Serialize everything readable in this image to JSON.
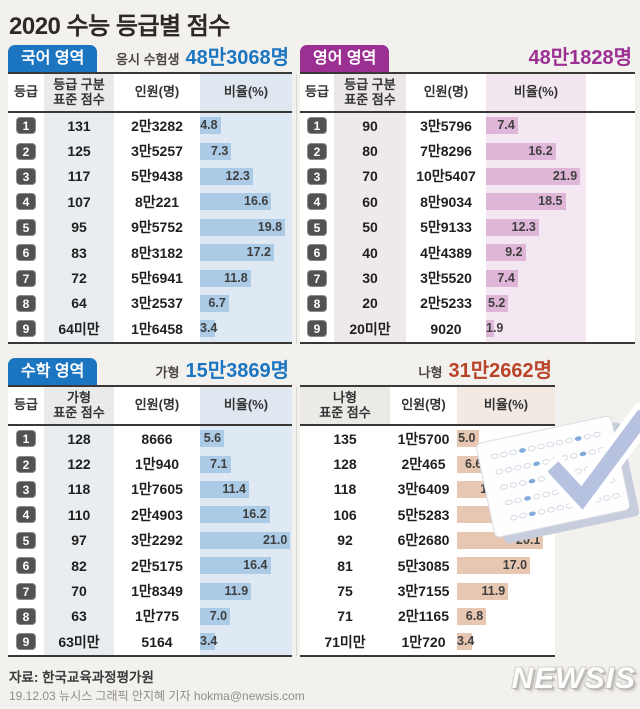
{
  "title": "2020 수능 등급별 점수",
  "sections": {
    "korean": {
      "badge": "국어 영역",
      "count_label": "응시 수험생",
      "count": "48만3068명",
      "accent": "#1c75c1",
      "bar_color": "#abcbe7",
      "headers": {
        "grade": "등급",
        "score1": "등급 구분",
        "score2": "표준 점수",
        "count": "인원(명)",
        "ratio": "비율(%)"
      },
      "rows": [
        {
          "g": "1",
          "s": "131",
          "c": "2만3282",
          "r": "4.8"
        },
        {
          "g": "2",
          "s": "125",
          "c": "3만5257",
          "r": "7.3"
        },
        {
          "g": "3",
          "s": "117",
          "c": "5만9438",
          "r": "12.3"
        },
        {
          "g": "4",
          "s": "107",
          "c": "8만221",
          "r": "16.6"
        },
        {
          "g": "5",
          "s": "95",
          "c": "9만5752",
          "r": "19.8"
        },
        {
          "g": "6",
          "s": "83",
          "c": "8만3182",
          "r": "17.2"
        },
        {
          "g": "7",
          "s": "72",
          "c": "5만6941",
          "r": "11.8"
        },
        {
          "g": "8",
          "s": "64",
          "c": "3만2537",
          "r": "6.7"
        },
        {
          "g": "9",
          "s": "64미만",
          "c": "1만6458",
          "r": "3.4"
        }
      ]
    },
    "english": {
      "badge": "영어 영역",
      "count": "48만1828명",
      "accent": "#9c3092",
      "bar_color": "#dfb5d8",
      "headers": {
        "grade": "등급",
        "score1": "등급 구분",
        "score2": "표준 점수",
        "count": "인원(명)",
        "ratio": "비율(%)"
      },
      "rows": [
        {
          "g": "1",
          "s": "90",
          "c": "3만5796",
          "r": "7.4"
        },
        {
          "g": "2",
          "s": "80",
          "c": "7만8296",
          "r": "16.2"
        },
        {
          "g": "3",
          "s": "70",
          "c": "10만5407",
          "r": "21.9"
        },
        {
          "g": "4",
          "s": "60",
          "c": "8만9034",
          "r": "18.5"
        },
        {
          "g": "5",
          "s": "50",
          "c": "5만9133",
          "r": "12.3"
        },
        {
          "g": "6",
          "s": "40",
          "c": "4만4389",
          "r": "9.2"
        },
        {
          "g": "7",
          "s": "30",
          "c": "3만5520",
          "r": "7.4"
        },
        {
          "g": "8",
          "s": "20",
          "c": "2만5233",
          "r": "5.2"
        },
        {
          "g": "9",
          "s": "20미만",
          "c": "9020",
          "r": "1.9"
        }
      ]
    },
    "ga": {
      "badge": "수학 영역",
      "count_label": "가형",
      "count": "15만3869명",
      "accent": "#1c75c1",
      "bar_color": "#abcbe7",
      "headers": {
        "grade": "등급",
        "score1": "가형",
        "score2": "표준 점수",
        "count": "인원(명)",
        "ratio": "비율(%)"
      },
      "rows": [
        {
          "g": "1",
          "s": "128",
          "c": "8666",
          "r": "5.6"
        },
        {
          "g": "2",
          "s": "122",
          "c": "1만940",
          "r": "7.1"
        },
        {
          "g": "3",
          "s": "118",
          "c": "1만7605",
          "r": "11.4"
        },
        {
          "g": "4",
          "s": "110",
          "c": "2만4903",
          "r": "16.2"
        },
        {
          "g": "5",
          "s": "97",
          "c": "3만2292",
          "r": "21.0"
        },
        {
          "g": "6",
          "s": "82",
          "c": "2만5175",
          "r": "16.4"
        },
        {
          "g": "7",
          "s": "70",
          "c": "1만8349",
          "r": "11.9"
        },
        {
          "g": "8",
          "s": "63",
          "c": "1만775",
          "r": "7.0"
        },
        {
          "g": "9",
          "s": "63미만",
          "c": "5164",
          "r": "3.4"
        }
      ]
    },
    "na": {
      "count_label": "나형",
      "count": "31만2662명",
      "accent": "#b9442a",
      "bar_color": "#e7c6b2",
      "headers": {
        "score1": "나형",
        "score2": "표준 점수",
        "count": "인원(명)",
        "ratio": "비율(%)"
      },
      "rows": [
        {
          "s": "135",
          "c": "1만5700",
          "r": "5.0"
        },
        {
          "s": "128",
          "c": "2만465",
          "r": "6.6"
        },
        {
          "s": "118",
          "c": "3만6409",
          "r": "11.6"
        },
        {
          "s": "106",
          "c": "5만5283",
          "r": "17.7"
        },
        {
          "s": "92",
          "c": "6만2680",
          "r": "20.1"
        },
        {
          "s": "81",
          "c": "5만3085",
          "r": "17.0"
        },
        {
          "s": "75",
          "c": "3만7155",
          "r": "11.9"
        },
        {
          "s": "71",
          "c": "2만1165",
          "r": "6.8"
        },
        {
          "s": "71미만",
          "c": "1만720",
          "r": "3.4"
        }
      ]
    }
  },
  "illustration": {
    "name": "omr-answer-sheet-with-checkmark",
    "check_color": "#b7c2e1",
    "bubble_color": "#82aada"
  },
  "footer": {
    "source": "자료: 한국교육과정평가원",
    "credit": "19.12.03 뉴시스 그래픽 안지혜 기자 hokma@newsis.com",
    "logo": "NEWSIS"
  },
  "chart_data": [
    {
      "type": "bar",
      "orientation": "horizontal",
      "title": "국어 영역",
      "subtitle": "응시 수험생 48만3068명",
      "categories": [
        "1",
        "2",
        "3",
        "4",
        "5",
        "6",
        "7",
        "8",
        "9"
      ],
      "score_cutoffs": [
        "131",
        "125",
        "117",
        "107",
        "95",
        "83",
        "72",
        "64",
        "64미만"
      ],
      "counts": [
        "2만3282",
        "3만5257",
        "5만9438",
        "8만221",
        "9만5752",
        "8만3182",
        "5만6941",
        "3만2537",
        "1만6458"
      ],
      "values": [
        4.8,
        7.3,
        12.3,
        16.6,
        19.8,
        17.2,
        11.8,
        6.7,
        3.4
      ],
      "xlabel": "비율(%)",
      "ylabel": "등급",
      "xlim": [
        0,
        22
      ],
      "legend": false
    },
    {
      "type": "bar",
      "orientation": "horizontal",
      "title": "영어 영역",
      "subtitle": "48만1828명",
      "categories": [
        "1",
        "2",
        "3",
        "4",
        "5",
        "6",
        "7",
        "8",
        "9"
      ],
      "score_cutoffs": [
        "90",
        "80",
        "70",
        "60",
        "50",
        "40",
        "30",
        "20",
        "20미만"
      ],
      "counts": [
        "3만5796",
        "7만8296",
        "10만5407",
        "8만9034",
        "5만9133",
        "4만4389",
        "3만5520",
        "2만5233",
        "9020"
      ],
      "values": [
        7.4,
        16.2,
        21.9,
        18.5,
        12.3,
        9.2,
        7.4,
        5.2,
        1.9
      ],
      "xlabel": "비율(%)",
      "ylabel": "등급",
      "xlim": [
        0,
        22
      ],
      "legend": false
    },
    {
      "type": "bar",
      "orientation": "horizontal",
      "title": "수학 영역 가형",
      "subtitle": "가형 15만3869명",
      "categories": [
        "1",
        "2",
        "3",
        "4",
        "5",
        "6",
        "7",
        "8",
        "9"
      ],
      "score_cutoffs": [
        "128",
        "122",
        "118",
        "110",
        "97",
        "82",
        "70",
        "63",
        "63미만"
      ],
      "counts": [
        "8666",
        "1만940",
        "1만7605",
        "2만4903",
        "3만2292",
        "2만5175",
        "1만8349",
        "1만775",
        "5164"
      ],
      "values": [
        5.6,
        7.1,
        11.4,
        16.2,
        21.0,
        16.4,
        11.9,
        7.0,
        3.4
      ],
      "xlabel": "비율(%)",
      "ylabel": "등급",
      "xlim": [
        0,
        22
      ],
      "legend": false
    },
    {
      "type": "bar",
      "orientation": "horizontal",
      "title": "수학 영역 나형",
      "subtitle": "나형 31만2662명",
      "categories": [
        "1",
        "2",
        "3",
        "4",
        "5",
        "6",
        "7",
        "8",
        "9"
      ],
      "score_cutoffs": [
        "135",
        "128",
        "118",
        "106",
        "92",
        "81",
        "75",
        "71",
        "71미만"
      ],
      "counts": [
        "1만5700",
        "2만465",
        "3만6409",
        "5만5283",
        "6만2680",
        "5만3085",
        "3만7155",
        "2만1165",
        "1만720"
      ],
      "values": [
        5.0,
        6.6,
        11.6,
        17.7,
        20.1,
        17.0,
        11.9,
        6.8,
        3.4
      ],
      "xlabel": "비율(%)",
      "ylabel": "등급",
      "xlim": [
        0,
        22
      ],
      "legend": false
    }
  ]
}
